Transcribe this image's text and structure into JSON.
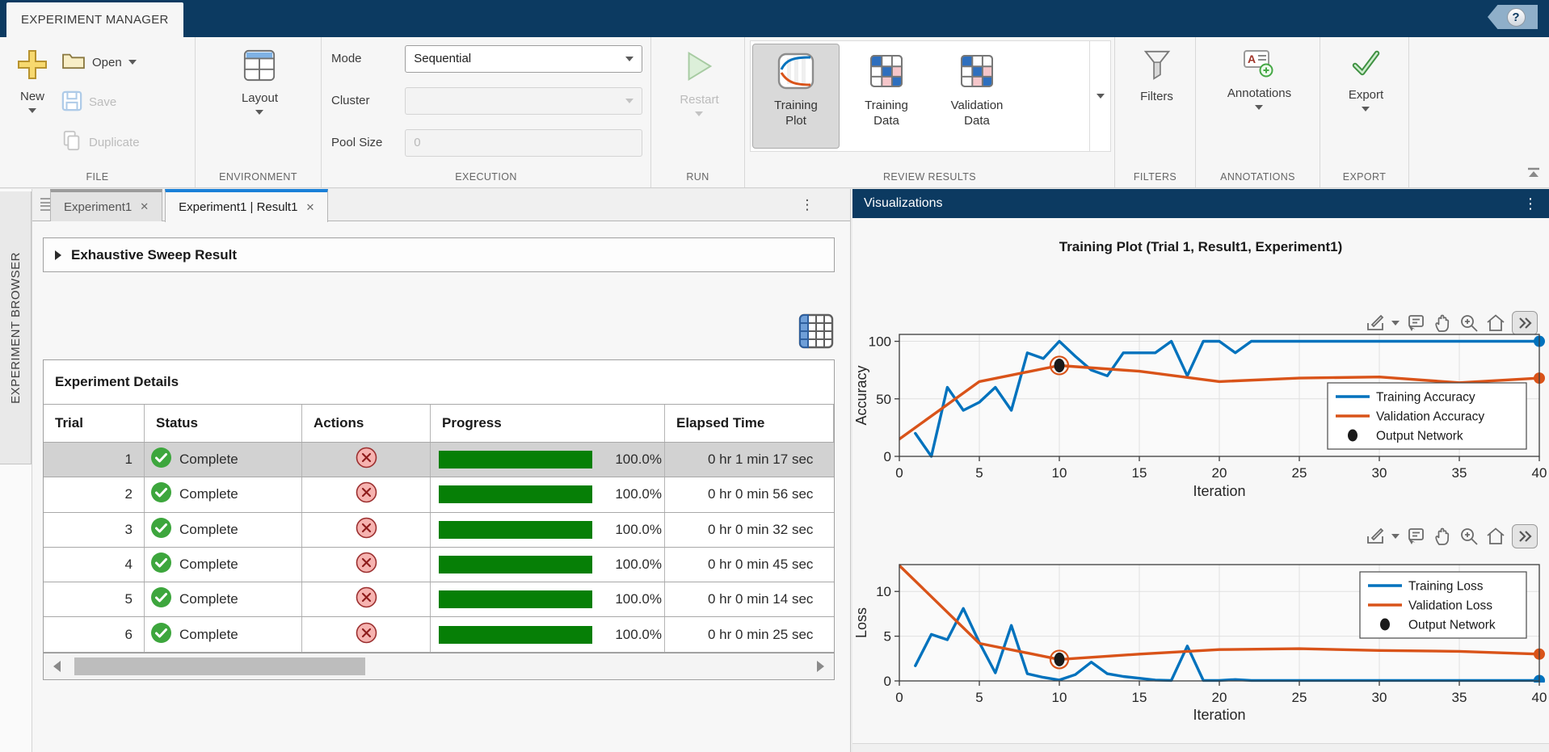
{
  "titlebar": {
    "app_tab": "EXPERIMENT MANAGER",
    "help_glyph": "?"
  },
  "toolbar": {
    "file": {
      "label": "FILE",
      "new_label": "New",
      "open_label": "Open",
      "save_label": "Save",
      "duplicate_label": "Duplicate"
    },
    "environment": {
      "label": "ENVIRONMENT",
      "layout_label": "Layout"
    },
    "execution": {
      "label": "EXECUTION",
      "mode_label": "Mode",
      "mode_value": "Sequential",
      "cluster_label": "Cluster",
      "cluster_value": "",
      "pool_label": "Pool Size",
      "pool_value": "0"
    },
    "run": {
      "label": "RUN",
      "restart_label": "Restart"
    },
    "review": {
      "label": "REVIEW RESULTS",
      "items": [
        {
          "line1": "Training",
          "line2": "Plot",
          "icon": "training-plot-icon",
          "selected": true
        },
        {
          "line1": "Training",
          "line2": "Data",
          "icon": "confusion-matrix-icon",
          "selected": false
        },
        {
          "line1": "Validation",
          "line2": "Data",
          "icon": "confusion-matrix-icon",
          "selected": false
        }
      ]
    },
    "filters": {
      "label": "FILTERS",
      "button_label": "Filters"
    },
    "annotations": {
      "label": "ANNOTATIONS",
      "button_label": "Annotations"
    },
    "export": {
      "label": "EXPORT",
      "button_label": "Export"
    }
  },
  "browser": {
    "title": "EXPERIMENT BROWSER"
  },
  "tabs": [
    {
      "label": "Experiment1",
      "close_glyph": "✕",
      "active": false
    },
    {
      "label": "Experiment1 | Result1",
      "close_glyph": "✕",
      "active": true
    }
  ],
  "tab_menu_glyph": "⋮",
  "result_panel": {
    "sweep_header": "Exhaustive Sweep Result",
    "details_title": "Experiment Details",
    "columns": [
      "Trial",
      "Status",
      "Actions",
      "Progress",
      "Elapsed Time"
    ],
    "rows": [
      {
        "trial": "1",
        "status": "Complete",
        "progress_pct": 100.0,
        "progress_label": "100.0%",
        "elapsed": "0 hr 1 min 17 sec",
        "selected": true
      },
      {
        "trial": "2",
        "status": "Complete",
        "progress_pct": 100.0,
        "progress_label": "100.0%",
        "elapsed": "0 hr 0 min 56 sec",
        "selected": false
      },
      {
        "trial": "3",
        "status": "Complete",
        "progress_pct": 100.0,
        "progress_label": "100.0%",
        "elapsed": "0 hr 0 min 32 sec",
        "selected": false
      },
      {
        "trial": "4",
        "status": "Complete",
        "progress_pct": 100.0,
        "progress_label": "100.0%",
        "elapsed": "0 hr 0 min 45 sec",
        "selected": false
      },
      {
        "trial": "5",
        "status": "Complete",
        "progress_pct": 100.0,
        "progress_label": "100.0%",
        "elapsed": "0 hr 0 min 14 sec",
        "selected": false
      },
      {
        "trial": "6",
        "status": "Complete",
        "progress_pct": 100.0,
        "progress_label": "100.0%",
        "elapsed": "0 hr 0 min 25 sec",
        "selected": false
      }
    ]
  },
  "visualizations": {
    "header": "Visualizations",
    "menu_glyph": "⋮",
    "plot_title": "Training Plot (Trial 1, Result1, Experiment1)"
  },
  "chart_data": [
    {
      "type": "line",
      "title": "Training and validation accuracy vs iteration",
      "xlabel": "Iteration",
      "ylabel": "Accuracy",
      "xlim": [
        0,
        40
      ],
      "ylim": [
        0,
        106
      ],
      "xticks": [
        0,
        5,
        10,
        15,
        20,
        25,
        30,
        35,
        40
      ],
      "yticks": [
        0,
        50,
        100
      ],
      "grid": true,
      "legend_position": "right-center",
      "series": [
        {
          "name": "Training Accuracy",
          "color": "#0072BD",
          "x": [
            1,
            2,
            3,
            4,
            5,
            6,
            7,
            8,
            9,
            10,
            11,
            12,
            13,
            14,
            15,
            16,
            17,
            18,
            19,
            20,
            21,
            22,
            23,
            24,
            25,
            26,
            27,
            28,
            29,
            30,
            31,
            32,
            33,
            34,
            35,
            36,
            37,
            38,
            39,
            40
          ],
          "y": [
            20,
            0,
            60,
            40,
            47,
            60,
            40,
            90,
            85,
            100,
            87,
            75,
            70,
            90,
            90,
            90,
            100,
            70,
            100,
            100,
            90,
            100,
            100,
            100,
            100,
            100,
            100,
            100,
            100,
            100,
            100,
            100,
            100,
            100,
            100,
            100,
            100,
            100,
            100,
            100
          ]
        },
        {
          "name": "Validation Accuracy",
          "color": "#D95319",
          "x": [
            0,
            5,
            10,
            15,
            20,
            25,
            30,
            35,
            40
          ],
          "y": [
            15,
            65,
            79,
            74,
            65,
            68,
            69,
            64,
            68
          ]
        }
      ],
      "output_network": {
        "name": "Output Network",
        "color": "#1a1a1a",
        "x": 10,
        "y": 79
      }
    },
    {
      "type": "line",
      "title": "Training and validation loss vs iteration",
      "xlabel": "Iteration",
      "ylabel": "Loss",
      "xlim": [
        0,
        40
      ],
      "ylim": [
        0,
        13
      ],
      "xticks": [
        0,
        5,
        10,
        15,
        20,
        25,
        30,
        35,
        40
      ],
      "yticks": [
        0,
        5,
        10
      ],
      "grid": true,
      "legend_position": "right-top",
      "series": [
        {
          "name": "Training Loss",
          "color": "#0072BD",
          "x": [
            1,
            2,
            3,
            4,
            5,
            6,
            7,
            8,
            9,
            10,
            11,
            12,
            13,
            14,
            15,
            16,
            17,
            18,
            19,
            20,
            21,
            22,
            23,
            24,
            25,
            26,
            27,
            28,
            29,
            30,
            31,
            32,
            33,
            34,
            35,
            36,
            37,
            38,
            39,
            40
          ],
          "y": [
            1.7,
            5.2,
            4.6,
            8.1,
            4.3,
            0.9,
            6.2,
            0.8,
            0.4,
            0.1,
            0.7,
            2.1,
            0.8,
            0.5,
            0.3,
            0.1,
            0.05,
            3.9,
            0.05,
            0.05,
            0.15,
            0.05,
            0.05,
            0.05,
            0.05,
            0.05,
            0.05,
            0.05,
            0.05,
            0.05,
            0.05,
            0.05,
            0.05,
            0.05,
            0.05,
            0.05,
            0.05,
            0.05,
            0.05,
            0.05
          ]
        },
        {
          "name": "Validation Loss",
          "color": "#D95319",
          "x": [
            0,
            5,
            10,
            15,
            20,
            25,
            30,
            35,
            40
          ],
          "y": [
            12.9,
            4.2,
            2.4,
            3.0,
            3.5,
            3.6,
            3.4,
            3.3,
            3.0
          ]
        }
      ],
      "output_network": {
        "name": "Output Network",
        "color": "#1a1a1a",
        "x": 10,
        "y": 2.4
      }
    }
  ]
}
